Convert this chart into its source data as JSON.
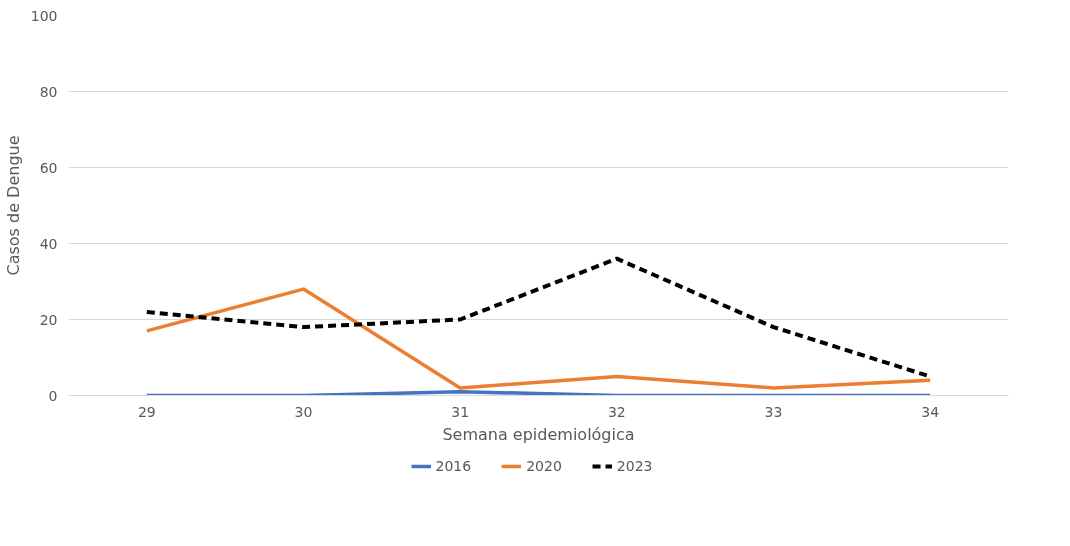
{
  "chart_data": {
    "type": "line",
    "xlabel": "Semana epidemiológica",
    "ylabel": "Casos de Dengue",
    "categories": [
      "29",
      "30",
      "31",
      "32",
      "33",
      "34"
    ],
    "ylim": [
      0,
      100
    ],
    "yticks": [
      0,
      20,
      40,
      60,
      80,
      100
    ],
    "grid": "y",
    "legend": "bottom",
    "series": [
      {
        "name": "2016",
        "color": "#4472c4",
        "values": [
          0,
          0,
          1,
          0,
          0,
          0
        ],
        "line_style": "solid"
      },
      {
        "name": "2020",
        "color": "#ed7d31",
        "values": [
          17,
          28,
          2,
          5,
          2,
          4
        ],
        "line_style": "solid"
      },
      {
        "name": "2023",
        "color": "#000000",
        "values": [
          22,
          18,
          20,
          36,
          18,
          5
        ],
        "line_style": "dashed"
      }
    ]
  }
}
